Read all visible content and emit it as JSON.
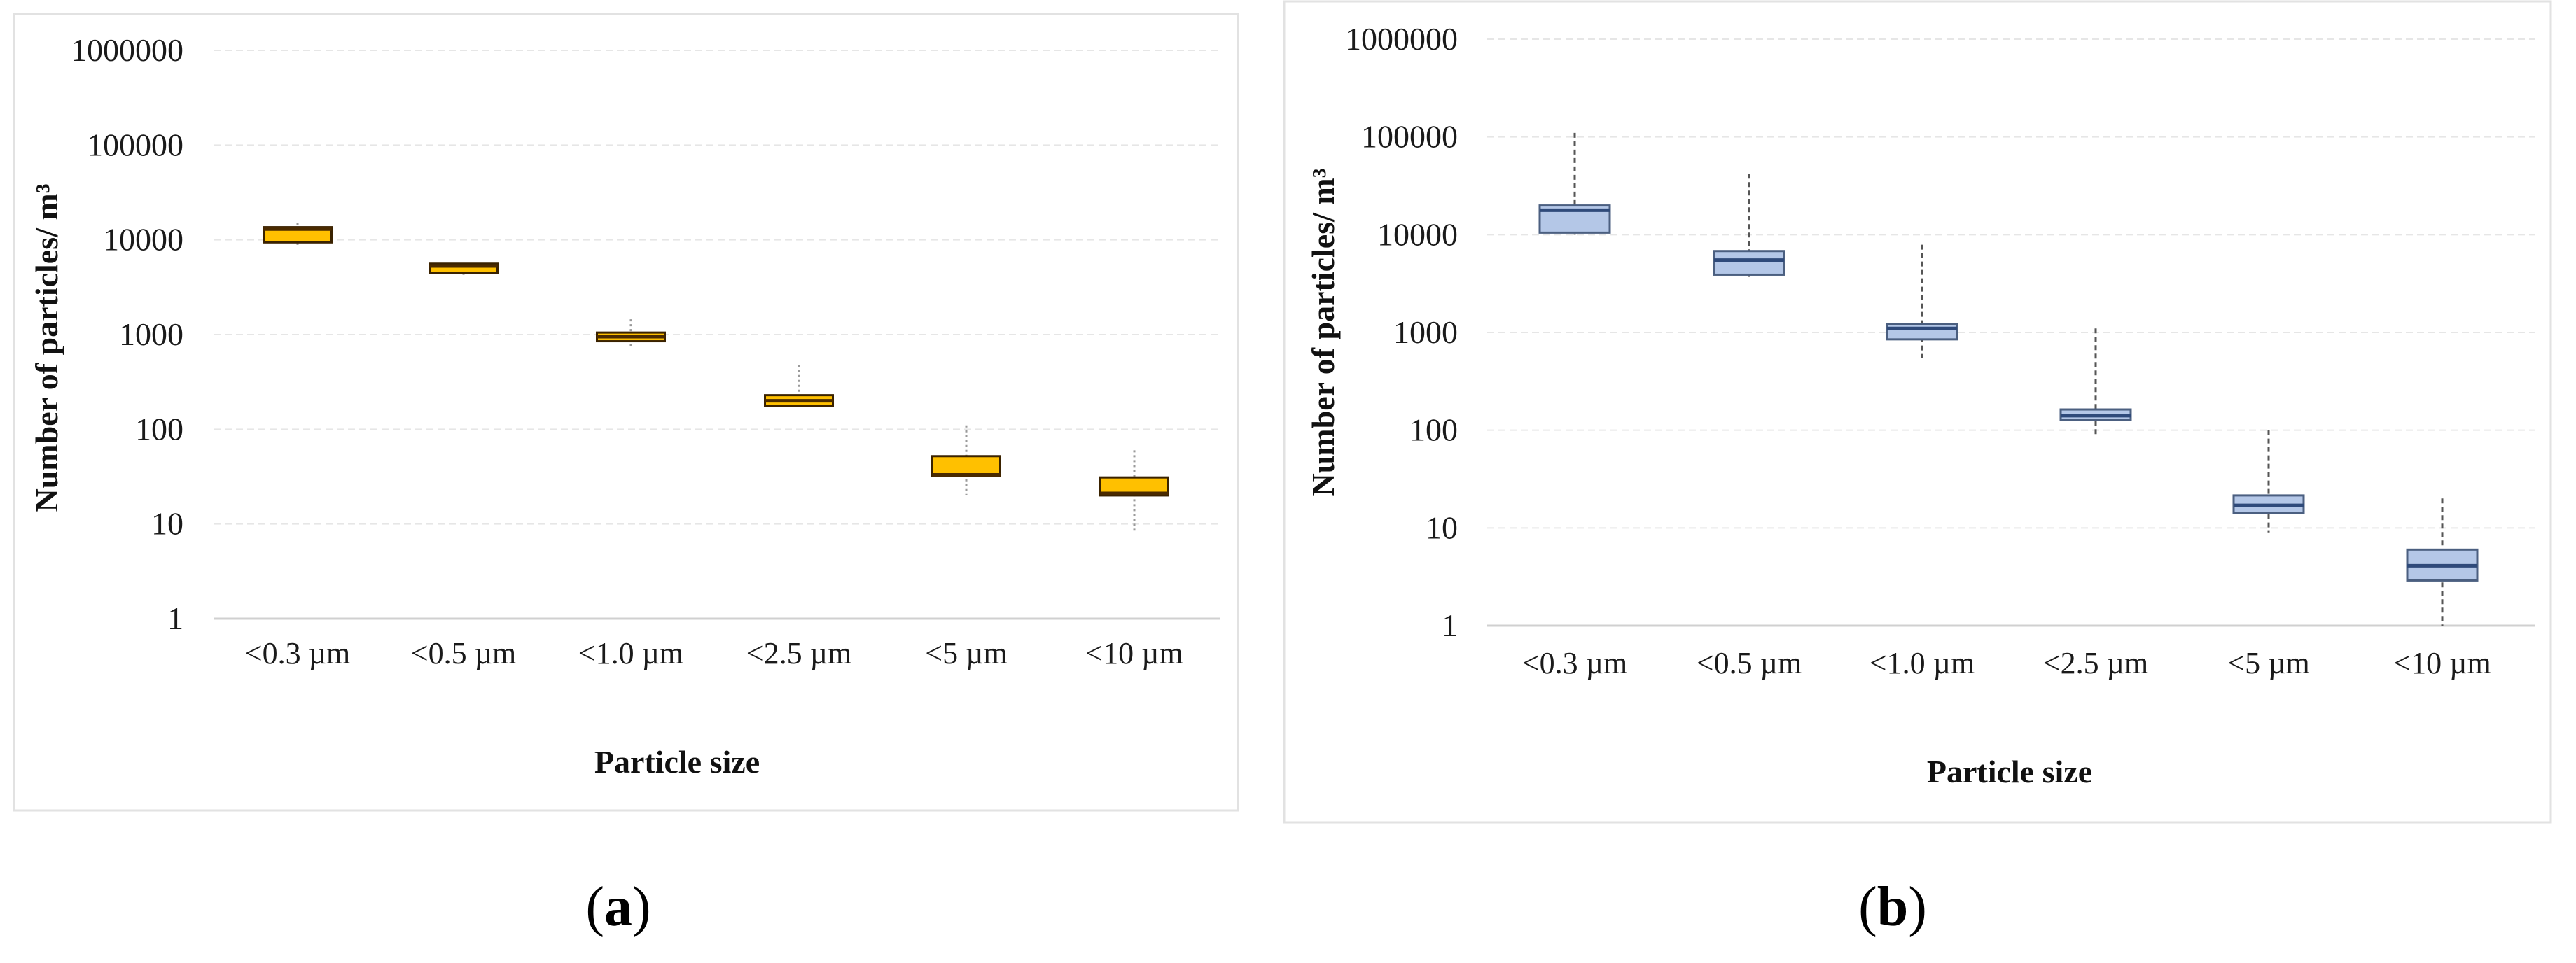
{
  "figure": {
    "panels": [
      {
        "id": "a",
        "caption": "(a)",
        "caption_letter": "a"
      },
      {
        "id": "b",
        "caption": "(b)",
        "caption_letter": "b"
      }
    ]
  },
  "chart_data": [
    {
      "type": "box",
      "panel": "(a)",
      "title": "",
      "xlabel": "Particle size",
      "ylabel": "Number of particles/ m³",
      "yscale": "log",
      "ylim": [
        1,
        1000000
      ],
      "yticks": [
        "1",
        "10",
        "100",
        "1000",
        "10000",
        "100000",
        "1000000"
      ],
      "grid": true,
      "legend": null,
      "categories": [
        "<0.3 µm",
        "<0.5 µm",
        "<1.0 µm",
        "<2.5 µm",
        "<5 µm",
        "<10 µm"
      ],
      "box_color": "#FFC000",
      "median_color": "#4A2A00",
      "whisker_style": "dotted",
      "boxes": [
        {
          "category": "<0.3 µm",
          "min": 8500,
          "q1": 9400,
          "median": 13000,
          "q3": 13600,
          "max": 15000
        },
        {
          "category": "<0.5 µm",
          "min": 4000,
          "q1": 4500,
          "median": 5300,
          "q3": 5600,
          "max": 5700
        },
        {
          "category": "<1.0 µm",
          "min": 750,
          "q1": 850,
          "median": 950,
          "q3": 1050,
          "max": 1450
        },
        {
          "category": "<2.5 µm",
          "min": 170,
          "q1": 177,
          "median": 200,
          "q3": 229,
          "max": 475
        },
        {
          "category": "<5 µm",
          "min": 20,
          "q1": 32,
          "median": 33,
          "q3": 52,
          "max": 110
        },
        {
          "category": "<10 µm",
          "min": 8.5,
          "q1": 20,
          "median": 21,
          "q3": 31,
          "max": 60
        }
      ]
    },
    {
      "type": "box",
      "panel": "(b)",
      "title": "",
      "xlabel": "Particle size",
      "ylabel": "Number of particles/ m³",
      "yscale": "log",
      "ylim": [
        1,
        1000000
      ],
      "yticks": [
        "1",
        "10",
        "100",
        "1000",
        "10000",
        "100000",
        "1000000"
      ],
      "grid": true,
      "legend": null,
      "categories": [
        "<0.3 µm",
        "<0.5 µm",
        "<1.0 µm",
        "<2.5 µm",
        "<5 µm",
        "<10 µm"
      ],
      "box_color": "#B4C7E7",
      "median_color": "#2F4A7A",
      "whisker_style": "dashed",
      "boxes": [
        {
          "category": "<0.3 µm",
          "min": 10000,
          "q1": 10500,
          "median": 17800,
          "q3": 19900,
          "max": 110000
        },
        {
          "category": "<0.5 µm",
          "min": 3700,
          "q1": 3900,
          "median": 5500,
          "q3": 6800,
          "max": 42000
        },
        {
          "category": "<1.0 µm",
          "min": 545,
          "q1": 850,
          "median": 1100,
          "q3": 1220,
          "max": 7900
        },
        {
          "category": "<2.5 µm",
          "min": 85,
          "q1": 128,
          "median": 141,
          "q3": 163,
          "max": 1100
        },
        {
          "category": "<5 µm",
          "min": 9,
          "q1": 14.2,
          "median": 17,
          "q3": 21.5,
          "max": 100
        },
        {
          "category": "<10 µm",
          "min": 1,
          "q1": 2.9,
          "median": 4.1,
          "q3": 6.0,
          "max": 20
        }
      ]
    }
  ]
}
